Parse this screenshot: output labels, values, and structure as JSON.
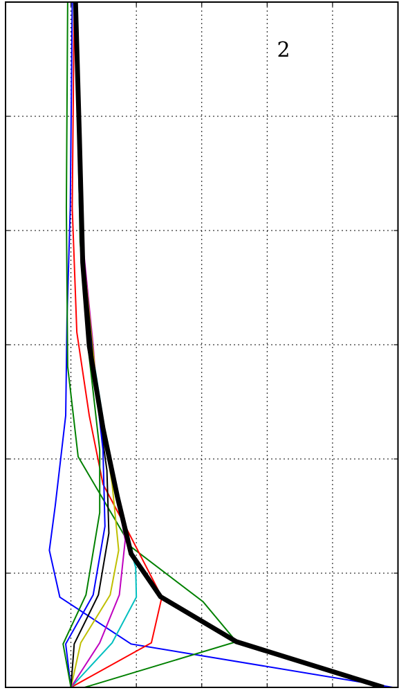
{
  "chart_data": {
    "type": "line",
    "annotation": "2",
    "xlim": [
      -1,
      5
    ],
    "xticks": [
      0,
      1,
      2,
      3,
      4
    ],
    "ylim": [
      0,
      6
    ],
    "yticks": [
      1,
      2,
      3,
      4,
      5
    ],
    "grid": true,
    "series": [
      {
        "color": "#0000ff",
        "width": 2,
        "x": [
          4.92,
          0.92,
          -0.17,
          -0.33,
          -0.24,
          -0.08,
          -0.06,
          -0.01,
          0.02
        ],
        "values": [
          0,
          0.38,
          0.79,
          1.2,
          1.59,
          2.38,
          3.23,
          4.2,
          6
        ]
      },
      {
        "color": "#008000",
        "width": 2,
        "x": [
          0.21,
          2.53,
          2.02,
          0.92,
          0.11,
          -0.05,
          -0.07,
          -0.05
        ],
        "values": [
          0,
          0.4,
          0.75,
          1.23,
          2.02,
          2.81,
          4.2,
          6
        ]
      },
      {
        "color": "#ff0000",
        "width": 2,
        "x": [
          0,
          1.23,
          1.39,
          0.86,
          0.49,
          0.28,
          0.09,
          0.02,
          0.05
        ],
        "values": [
          0,
          0.39,
          0.79,
          1.38,
          1.78,
          2.38,
          3.11,
          4.2,
          6
        ]
      },
      {
        "color": "#00bfbf",
        "width": 2,
        "x": [
          0,
          0.63,
          1.0,
          0.99,
          0.81,
          0.55,
          0.28,
          0.13,
          0.07
        ],
        "values": [
          0,
          0.39,
          0.79,
          1.05,
          1.41,
          2.14,
          3.11,
          4.2,
          6
        ]
      },
      {
        "color": "#bf00bf",
        "width": 2,
        "x": [
          0,
          0.44,
          0.74,
          0.83,
          0.63,
          0.39,
          0.34,
          0.18,
          0.09
        ],
        "values": [
          0,
          0.39,
          0.81,
          1.29,
          1.9,
          2.62,
          2.99,
          3.9,
          6
        ]
      },
      {
        "color": "#bfbf00",
        "width": 2,
        "x": [
          0,
          0.15,
          0.6,
          0.73,
          0.63,
          0.4,
          0.33,
          0.17,
          0.09
        ],
        "values": [
          0,
          0.39,
          0.81,
          1.2,
          1.78,
          2.6,
          2.99,
          3.9,
          6
        ]
      },
      {
        "color": "#000000",
        "width": 2,
        "x": [
          0,
          0.05,
          0.42,
          0.58,
          0.55,
          0.38,
          0.32,
          0.17,
          0.09
        ],
        "values": [
          0,
          0.38,
          0.81,
          1.35,
          1.9,
          2.6,
          2.99,
          3.9,
          6
        ]
      },
      {
        "color": "#0000ff",
        "width": 2,
        "x": [
          0,
          -0.08,
          0.34,
          0.52,
          0.49,
          0.31,
          0.16,
          0.09
        ],
        "values": [
          0,
          0.38,
          0.81,
          1.41,
          2.08,
          2.99,
          3.9,
          6
        ]
      },
      {
        "color": "#008000",
        "width": 2,
        "x": [
          0,
          -0.12,
          0.23,
          0.44,
          0.44,
          0.26,
          0.14,
          0.07
        ],
        "values": [
          0,
          0.38,
          0.81,
          1.53,
          2.08,
          2.99,
          3.9,
          6
        ]
      },
      {
        "color": "#000000",
        "width": 7,
        "x": [
          4.78,
          2.53,
          1.37,
          0.92,
          0.71,
          0.49,
          0.28,
          0.18,
          0.13,
          0.07
        ],
        "values": [
          0,
          0.4,
          0.794,
          1.17,
          1.67,
          2.27,
          2.99,
          3.72,
          4.81,
          6
        ]
      }
    ]
  }
}
